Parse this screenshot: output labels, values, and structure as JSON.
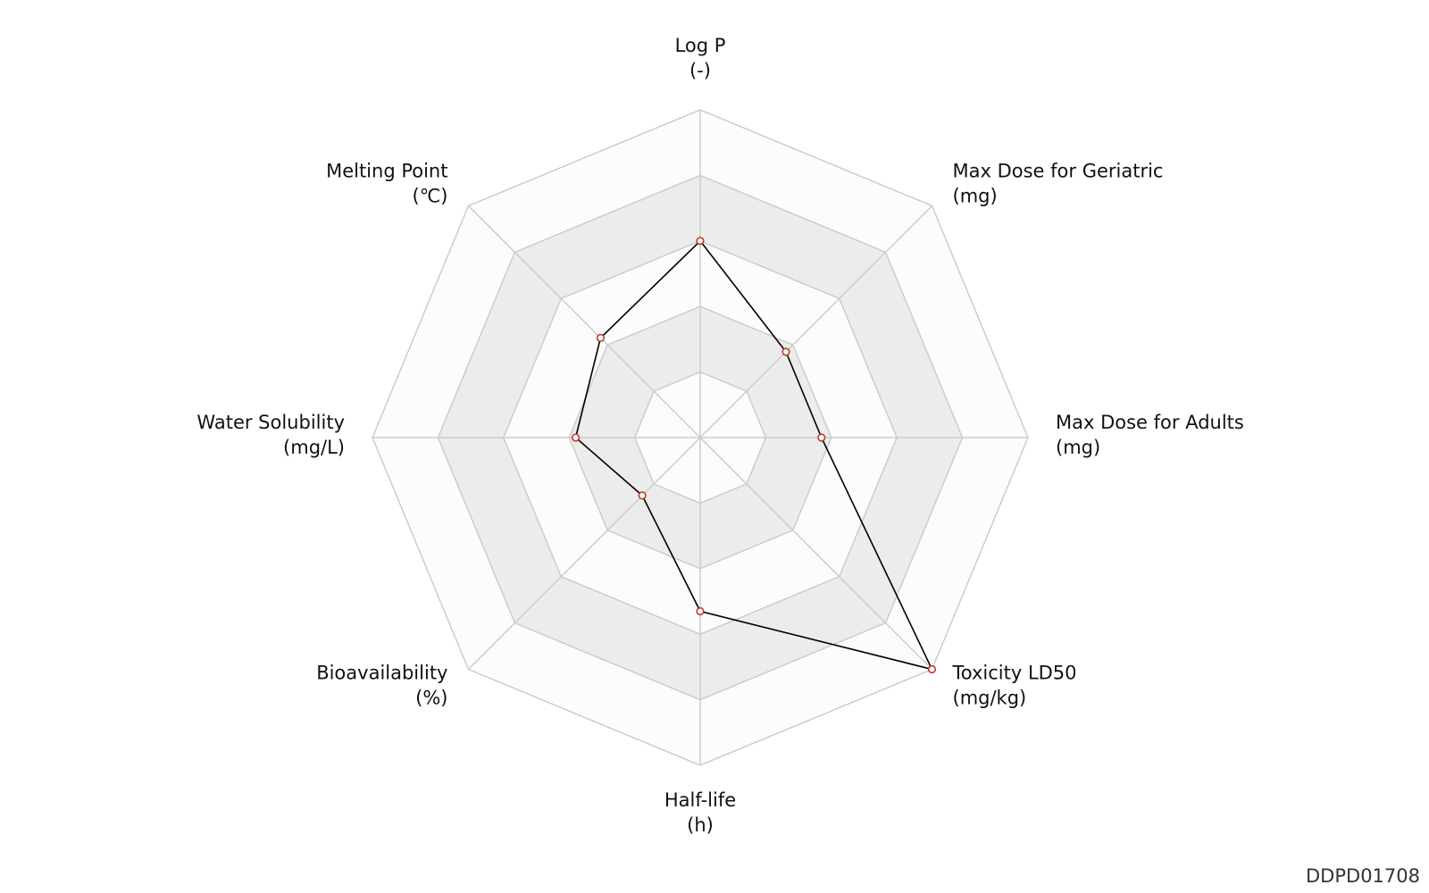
{
  "chart_data": {
    "type": "radar",
    "categories": [
      "Log P",
      "Max Dose for Geriatric",
      "Max Dose for Adults",
      "Toxicity LD50",
      "Half-life",
      "Bioavailability",
      "Water Solubility",
      "Melting Point"
    ],
    "units": [
      "(-)",
      "(mg)",
      "(mg)",
      "(mg/kg)",
      "(h)",
      "(%)",
      "(mg/L)",
      "(℃)"
    ],
    "values": [
      0.6,
      0.37,
      0.37,
      1.0,
      0.53,
      0.25,
      0.38,
      0.43
    ],
    "color": "#000000",
    "marker_color": "#c0392b",
    "ylim": [
      0,
      1
    ],
    "yticks": [
      0.2,
      0.4,
      0.6,
      0.8,
      1
    ],
    "grid": true,
    "grid_color": "#cccccc",
    "band_colors": [
      "#fcfcfc",
      "#ececec"
    ],
    "watermark": "DDPD01708"
  }
}
